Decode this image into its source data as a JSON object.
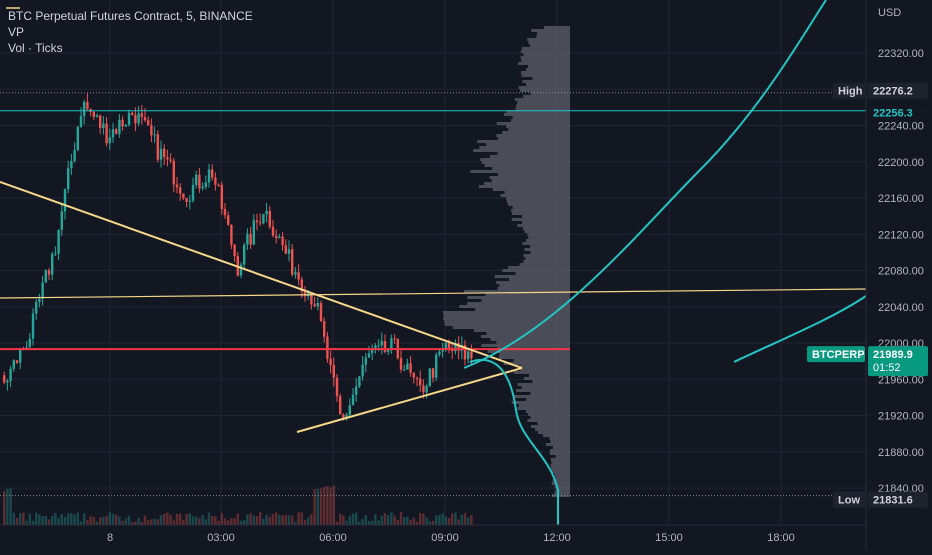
{
  "header": {
    "symbol": "BTC Perpetual Futures Contract, 5, BINANCE",
    "indicator1": "VP",
    "indicator2": "Vol · Ticks"
  },
  "currency": "USD",
  "colors": {
    "background": "#131722",
    "up": "#26a69a",
    "down": "#ef5350",
    "trendline": "#f5d78a",
    "curve": "#22c4c4",
    "profile": "#5d606b",
    "price_line": "#f23645"
  },
  "chart_data": {
    "type": "candlestick",
    "ylim": [
      21835,
      22370
    ],
    "y_ticks": [
      22320,
      22280,
      22240,
      22200,
      22160,
      22120,
      22080,
      22040,
      22000,
      21960,
      21920,
      21880,
      21840
    ],
    "x_ticks": [
      "8",
      "03:00",
      "06:00",
      "09:00",
      "12:00",
      "15:00",
      "18:00"
    ],
    "last_price": {
      "label": "BTCPERP",
      "value": "21989.9",
      "countdown": "01:52",
      "price": 21989.9
    },
    "high": {
      "label": "High",
      "value": "22276.2",
      "price": 22276.2
    },
    "low": {
      "label": "Low",
      "value": "21831.6",
      "price": 21831.6
    },
    "horizontal_level": {
      "value": "22256.3",
      "price": 22256.3
    },
    "anchor_prices": [
      21955,
      22010,
      22110,
      22265,
      22230,
      22255,
      22210,
      22165,
      22190,
      22085,
      22150,
      22090,
      22045,
      21910,
      21985,
      21995,
      21945,
      21995,
      21985
    ]
  }
}
